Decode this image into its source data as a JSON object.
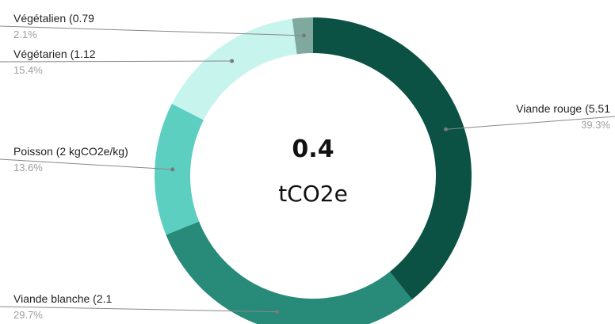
{
  "chart_data": {
    "type": "pie",
    "donut": true,
    "center_value": "0.4",
    "center_unit": "tCO2e",
    "slices": [
      {
        "label": "Viande rouge (5.51",
        "percent_label": "39.3%",
        "value": 39.3,
        "color": "#0b5244"
      },
      {
        "label": "Viande blanche (2.1",
        "percent_label": "29.7%",
        "value": 29.7,
        "color": "#288a79"
      },
      {
        "label": "Poisson (2 kgCO2e/kg)",
        "percent_label": "13.6%",
        "value": 13.6,
        "color": "#5ccfc0"
      },
      {
        "label": "Végétarien (1.12",
        "percent_label": "15.4%",
        "value": 15.4,
        "color": "#c8f4ee"
      },
      {
        "label": "Végétalien (0.79",
        "percent_label": "2.1%",
        "value": 2.1,
        "color": "#7fa89e"
      }
    ],
    "start": "top",
    "direction": "clockwise"
  }
}
